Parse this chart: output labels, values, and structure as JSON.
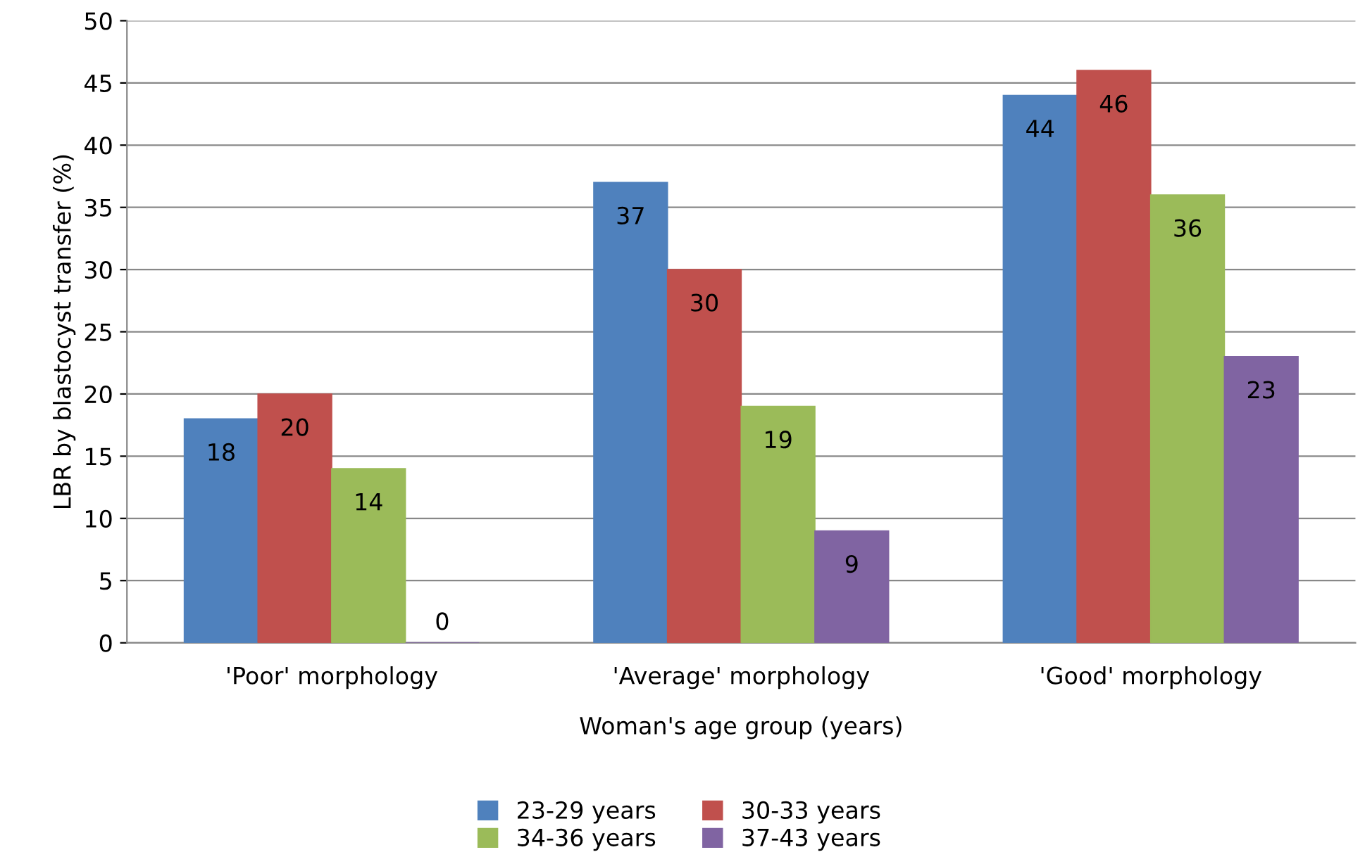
{
  "chart_data": {
    "type": "bar",
    "xlabel": "Woman's age group (years)",
    "ylabel": "LBR by blastocyst transfer (%)",
    "categories": [
      "'Poor' morphology",
      "'Average' morphology",
      "'Good' morphology"
    ],
    "series": [
      {
        "name": "23-29 years",
        "color": "#4f81bd",
        "values": [
          18,
          37,
          44
        ]
      },
      {
        "name": "30-33 years",
        "color": "#c0504d",
        "values": [
          20,
          30,
          46
        ]
      },
      {
        "name": "34-36 years",
        "color": "#9bbb59",
        "values": [
          14,
          19,
          36
        ]
      },
      {
        "name": "37-43 years",
        "color": "#8064a2",
        "values": [
          0,
          9,
          23
        ]
      }
    ],
    "ylim": [
      0,
      50
    ],
    "yticks": [
      0,
      5,
      10,
      15,
      20,
      25,
      30,
      35,
      40,
      45,
      50
    ],
    "grid": "y",
    "data_labels": true,
    "legend": "bottom"
  }
}
